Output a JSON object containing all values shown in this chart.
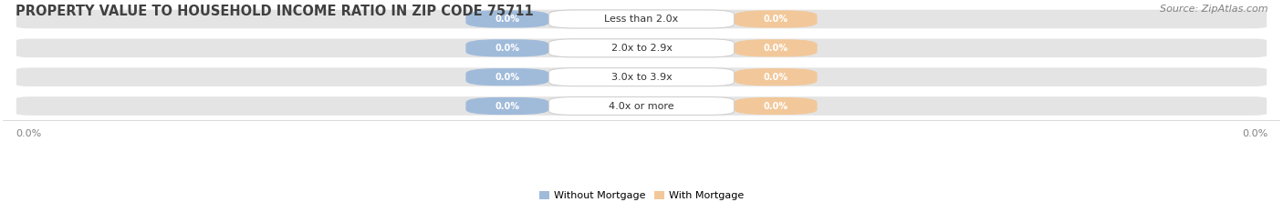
{
  "title": "PROPERTY VALUE TO HOUSEHOLD INCOME RATIO IN ZIP CODE 75711",
  "source": "Source: ZipAtlas.com",
  "categories": [
    "Less than 2.0x",
    "2.0x to 2.9x",
    "3.0x to 3.9x",
    "4.0x or more"
  ],
  "without_mortgage_vals": [
    "0.0%",
    "0.0%",
    "0.0%",
    "0.0%"
  ],
  "with_mortgage_vals": [
    "0.0%",
    "0.0%",
    "0.0%",
    "0.0%"
  ],
  "bg_color": "#e4e4e4",
  "blue_color": "#a0bbda",
  "orange_color": "#f2c89a",
  "title_color": "#404040",
  "source_color": "#808080",
  "axis_val_color": "#808080",
  "legend_blue": "#a0bbda",
  "legend_orange": "#f2c89a",
  "title_fontsize": 10.5,
  "source_fontsize": 8,
  "cat_fontsize": 8,
  "pct_fontsize": 7,
  "axis_val_fontsize": 8,
  "legend_fontsize": 8,
  "fig_width": 14.06,
  "fig_height": 2.33
}
